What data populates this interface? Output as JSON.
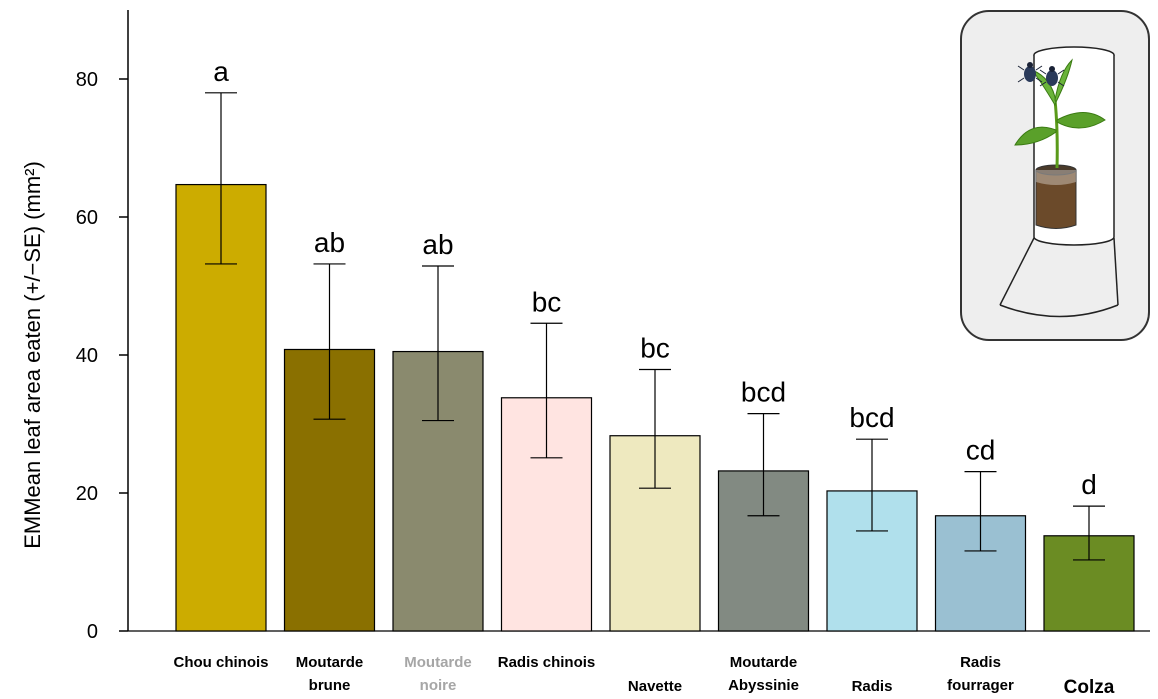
{
  "chart_data": {
    "type": "bar",
    "ylabel": "EMMean leaf area eaten (+/−SE) (mm²)",
    "xlabel": "",
    "title": "",
    "ylim": [
      0,
      90
    ],
    "yticks": [
      0,
      20,
      40,
      60,
      80
    ],
    "grid": false,
    "categories": [
      {
        "label_lines": [
          "Chou chinois"
        ],
        "label_color": "#000000",
        "label_size": "normal"
      },
      {
        "label_lines": [
          "Moutarde",
          "brune"
        ],
        "label_color": "#000000",
        "label_size": "normal"
      },
      {
        "label_lines": [
          "Moutarde",
          "noire"
        ],
        "label_color": "#a6a6a6",
        "label_size": "normal"
      },
      {
        "label_lines": [
          "Radis chinois"
        ],
        "label_color": "#000000",
        "label_size": "normal"
      },
      {
        "label_lines": [
          "Navette"
        ],
        "label_color": "#000000",
        "label_size": "normal"
      },
      {
        "label_lines": [
          "Moutarde",
          "Abyssinie"
        ],
        "label_color": "#000000",
        "label_size": "normal"
      },
      {
        "label_lines": [
          "Radis"
        ],
        "label_color": "#000000",
        "label_size": "normal"
      },
      {
        "label_lines": [
          "Radis",
          "fourrager"
        ],
        "label_color": "#000000",
        "label_size": "normal"
      },
      {
        "label_lines": [
          "Colza"
        ],
        "label_color": "#000000",
        "label_size": "large"
      }
    ],
    "values": [
      64.7,
      40.8,
      40.5,
      33.8,
      28.3,
      23.2,
      20.3,
      16.7,
      13.8
    ],
    "se_lower": [
      53.2,
      30.7,
      30.5,
      25.1,
      20.7,
      16.7,
      14.5,
      11.6,
      10.3
    ],
    "se_upper": [
      78.0,
      53.2,
      52.9,
      44.6,
      37.9,
      31.5,
      27.8,
      23.1,
      18.1
    ],
    "significance_letters": [
      "a",
      "ab",
      "ab",
      "bc",
      "bc",
      "bcd",
      "bcd",
      "cd",
      "d"
    ],
    "bar_colors": [
      "#ccac00",
      "#8a7000",
      "#8a8a6e",
      "#ffe4e1",
      "#eee9bf",
      "#828a82",
      "#b0e0ec",
      "#9ac0d2",
      "#6b8c23"
    ]
  },
  "inset": {
    "description_icon": "beetle-cage-icon",
    "border_color": "#333333",
    "background": "#eeeeee"
  }
}
